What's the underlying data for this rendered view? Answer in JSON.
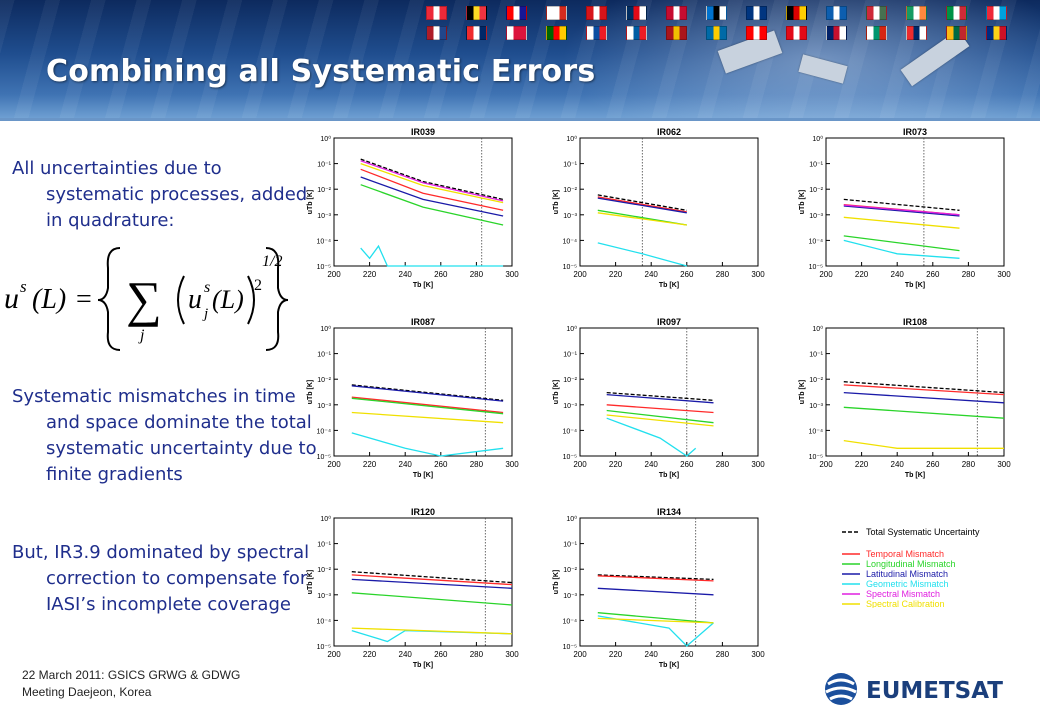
{
  "slide": {
    "title": "Combining all Systematic Errors",
    "bullets": [
      "All uncertainties due to systematic processes, added in quadrature:",
      "Systematic mismatches in time and space dominate the total systematic uncertainty due to finite gradients",
      "But, IR3.9 dominated by spectral correction to compensate for IASI’s incomplete coverage"
    ],
    "footer": {
      "line1": "22 March 2011: GSICS GRWG & GDWG",
      "line2": "Meeting Daejeon, Korea"
    },
    "logo_text": "EUMETSAT",
    "formula": {
      "lhs": "u",
      "lhs_sup": "s",
      "lhs_arg": "(L)",
      "equals": "=",
      "sum": "∑",
      "sum_index": "j",
      "term": "u",
      "term_sup": "s",
      "term_sub": "j",
      "term_arg": "(L)",
      "square": "2",
      "power": "1/2"
    },
    "flag_colors": [
      [
        "#ed2939",
        "#ffffff",
        "#ed2939"
      ],
      [
        "#000000",
        "#fdda24",
        "#ef3340"
      ],
      [
        "#ff0000",
        "#ffffff",
        "#171796"
      ],
      [
        "#ffffff",
        "#ffffff",
        "#d52b1e"
      ],
      [
        "#d7141a",
        "#ffffff",
        "#d7141a"
      ],
      [
        "#002d62",
        "#e30a17",
        "#ffffff"
      ],
      [
        "#c60c30",
        "#ffffff",
        "#c60c30"
      ],
      [
        "#0072ce",
        "#000000",
        "#ffffff"
      ],
      [
        "#003580",
        "#ffffff",
        "#003580"
      ],
      [
        "#000000",
        "#dd0000",
        "#ffce00"
      ],
      [
        "#0d5eaf",
        "#ffffff",
        "#0d5eaf"
      ],
      [
        "#ce2939",
        "#ffffff",
        "#477050"
      ],
      [
        "#169b62",
        "#ffffff",
        "#ff883e"
      ],
      [
        "#009246",
        "#ffffff",
        "#ce2b37"
      ],
      [
        "#ed2939",
        "#ffffff",
        "#00a1de"
      ],
      [
        "#ae1c28",
        "#ffffff",
        "#21468b"
      ],
      [
        "#ef2b2d",
        "#ffffff",
        "#002868"
      ],
      [
        "#ffffff",
        "#dc143c",
        "#dc143c"
      ],
      [
        "#006600",
        "#ff0000",
        "#ffcc00"
      ],
      [
        "#ffffff",
        "#0b4ea2",
        "#ee1c25"
      ],
      [
        "#ffffff",
        "#005da4",
        "#ed1c24"
      ],
      [
        "#aa151b",
        "#f1bf00",
        "#aa151b"
      ],
      [
        "#006aa7",
        "#fecc00",
        "#006aa7"
      ],
      [
        "#ff0000",
        "#ffffff",
        "#ff0000"
      ],
      [
        "#e30a17",
        "#ffffff",
        "#e30a17"
      ],
      [
        "#012169",
        "#c8102e",
        "#ffffff"
      ],
      [
        "#ffffff",
        "#00966e",
        "#d62612"
      ],
      [
        "#ef2b2d",
        "#002868",
        "#ffffff"
      ],
      [
        "#fdb913",
        "#006a44",
        "#c1272d"
      ],
      [
        "#002b7f",
        "#fcd116",
        "#ce1126"
      ]
    ]
  },
  "chart_data": [
    {
      "type": "line",
      "title": "IR039",
      "xlabel": "Tb [K]",
      "ylabel": "uTb [K]",
      "xlim": [
        200,
        300
      ],
      "ylim": [
        1e-05,
        1
      ],
      "yscale": "log",
      "xticks": [
        200,
        220,
        240,
        260,
        280,
        300
      ],
      "yticks": [
        "10⁰",
        "10⁻¹",
        "10⁻²",
        "10⁻³",
        "10⁻⁴",
        "10⁻⁵"
      ],
      "vline": 283,
      "series": [
        {
          "name": "Total Systematic Uncertainty",
          "x": [
            215,
            250,
            295
          ],
          "y": [
            0.15,
            0.02,
            0.004
          ]
        },
        {
          "name": "Temporal Mismatch",
          "x": [
            215,
            250,
            295
          ],
          "y": [
            0.06,
            0.007,
            0.0015
          ]
        },
        {
          "name": "Longitudinal Mismatch",
          "x": [
            215,
            250,
            295
          ],
          "y": [
            0.015,
            0.002,
            0.0004
          ]
        },
        {
          "name": "Latitudinal Mismatch",
          "x": [
            215,
            250,
            295
          ],
          "y": [
            0.03,
            0.004,
            0.0009
          ]
        },
        {
          "name": "Geometric Mismatch",
          "x": [
            215,
            220,
            225,
            230,
            280,
            290,
            295
          ],
          "y": [
            5e-05,
            2e-05,
            6e-05,
            1e-05,
            1e-05,
            1e-05,
            1e-05
          ]
        },
        {
          "name": "Spectral Mismatch",
          "x": [
            215,
            250,
            295
          ],
          "y": [
            0.13,
            0.018,
            0.0035
          ]
        },
        {
          "name": "Spectral Calibration",
          "x": [
            215,
            250,
            295
          ],
          "y": [
            0.1,
            0.014,
            0.003
          ]
        }
      ]
    },
    {
      "type": "line",
      "title": "IR062",
      "xlabel": "Tb [K]",
      "ylabel": "uTb [K]",
      "xlim": [
        200,
        300
      ],
      "ylim": [
        1e-05,
        1
      ],
      "yscale": "log",
      "xticks": [
        200,
        220,
        240,
        260,
        280,
        300
      ],
      "yticks": [
        "10⁰",
        "10⁻¹",
        "10⁻²",
        "10⁻³",
        "10⁻⁴",
        "10⁻⁵"
      ],
      "vline": 235,
      "series": [
        {
          "name": "Total Systematic Uncertainty",
          "x": [
            210,
            260
          ],
          "y": [
            0.006,
            0.0015
          ]
        },
        {
          "name": "Temporal Mismatch",
          "x": [
            210,
            260
          ],
          "y": [
            0.005,
            0.0013
          ]
        },
        {
          "name": "Longitudinal Mismatch",
          "x": [
            210,
            260
          ],
          "y": [
            0.0015,
            0.0004
          ]
        },
        {
          "name": "Latitudinal Mismatch",
          "x": [
            210,
            260
          ],
          "y": [
            0.0045,
            0.0012
          ]
        },
        {
          "name": "Geometric Mismatch",
          "x": [
            210,
            235,
            260
          ],
          "y": [
            8e-05,
            3e-05,
            1e-05
          ]
        },
        {
          "name": "Spectral Calibration",
          "x": [
            210,
            260
          ],
          "y": [
            0.0012,
            0.0004
          ]
        }
      ]
    },
    {
      "type": "line",
      "title": "IR073",
      "xlabel": "Tb [K]",
      "ylabel": "uTb [K]",
      "xlim": [
        200,
        300
      ],
      "ylim": [
        1e-05,
        1
      ],
      "yscale": "log",
      "xticks": [
        200,
        220,
        240,
        260,
        280,
        300
      ],
      "yticks": [
        "10⁰",
        "10⁻¹",
        "10⁻²",
        "10⁻³",
        "10⁻⁴",
        "10⁻⁵"
      ],
      "vline": 255,
      "series": [
        {
          "name": "Total Systematic Uncertainty",
          "x": [
            210,
            275
          ],
          "y": [
            0.004,
            0.0015
          ]
        },
        {
          "name": "Temporal Mismatch",
          "x": [
            210,
            275
          ],
          "y": [
            0.0025,
            0.001
          ]
        },
        {
          "name": "Longitudinal Mismatch",
          "x": [
            210,
            275
          ],
          "y": [
            0.00015,
            4e-05
          ]
        },
        {
          "name": "Latitudinal Mismatch",
          "x": [
            210,
            275
          ],
          "y": [
            0.0022,
            0.0009
          ]
        },
        {
          "name": "Geometric Mismatch",
          "x": [
            210,
            240,
            275
          ],
          "y": [
            0.0001,
            3e-05,
            2e-05
          ]
        },
        {
          "name": "Spectral Mismatch",
          "x": [
            210,
            275
          ],
          "y": [
            0.0024,
            0.001
          ]
        },
        {
          "name": "Spectral Calibration",
          "x": [
            210,
            275
          ],
          "y": [
            0.0008,
            0.0003
          ]
        }
      ]
    },
    {
      "type": "line",
      "title": "IR087",
      "xlabel": "Tb [K]",
      "ylabel": "uTb [K]",
      "xlim": [
        200,
        300
      ],
      "ylim": [
        1e-05,
        1
      ],
      "yscale": "log",
      "xticks": [
        200,
        220,
        240,
        260,
        280,
        300
      ],
      "yticks": [
        "10⁰",
        "10⁻¹",
        "10⁻²",
        "10⁻³",
        "10⁻⁴",
        "10⁻⁵"
      ],
      "vline": 285,
      "series": [
        {
          "name": "Total Systematic Uncertainty",
          "x": [
            210,
            295
          ],
          "y": [
            0.006,
            0.0015
          ]
        },
        {
          "name": "Temporal Mismatch",
          "x": [
            210,
            295
          ],
          "y": [
            0.002,
            0.0005
          ]
        },
        {
          "name": "Longitudinal Mismatch",
          "x": [
            210,
            295
          ],
          "y": [
            0.0018,
            0.00045
          ]
        },
        {
          "name": "Latitudinal Mismatch",
          "x": [
            210,
            295
          ],
          "y": [
            0.0055,
            0.0014
          ]
        },
        {
          "name": "Geometric Mismatch",
          "x": [
            210,
            240,
            260,
            295
          ],
          "y": [
            8e-05,
            2e-05,
            1e-05,
            2e-05
          ]
        },
        {
          "name": "Spectral Calibration",
          "x": [
            210,
            295
          ],
          "y": [
            0.0005,
            0.0002
          ]
        }
      ]
    },
    {
      "type": "line",
      "title": "IR097",
      "xlabel": "Tb [K]",
      "ylabel": "uTb [K]",
      "xlim": [
        200,
        300
      ],
      "ylim": [
        1e-05,
        1
      ],
      "yscale": "log",
      "xticks": [
        200,
        220,
        240,
        260,
        280,
        300
      ],
      "yticks": [
        "10⁰",
        "10⁻¹",
        "10⁻²",
        "10⁻³",
        "10⁻⁴",
        "10⁻⁵"
      ],
      "vline": 260,
      "series": [
        {
          "name": "Total Systematic Uncertainty",
          "x": [
            215,
            275
          ],
          "y": [
            0.003,
            0.0015
          ]
        },
        {
          "name": "Temporal Mismatch",
          "x": [
            215,
            275
          ],
          "y": [
            0.001,
            0.0005
          ]
        },
        {
          "name": "Longitudinal Mismatch",
          "x": [
            215,
            275
          ],
          "y": [
            0.0006,
            0.0002
          ]
        },
        {
          "name": "Latitudinal Mismatch",
          "x": [
            215,
            275
          ],
          "y": [
            0.0025,
            0.0012
          ]
        },
        {
          "name": "Geometric Mismatch",
          "x": [
            215,
            245,
            260,
            265
          ],
          "y": [
            0.0003,
            5e-05,
            1e-05,
            2e-05
          ]
        },
        {
          "name": "Spectral Calibration",
          "x": [
            215,
            275
          ],
          "y": [
            0.0004,
            0.00015
          ]
        }
      ]
    },
    {
      "type": "line",
      "title": "IR108",
      "xlabel": "Tb [K]",
      "ylabel": "uTb [K]",
      "xlim": [
        200,
        300
      ],
      "ylim": [
        1e-05,
        1
      ],
      "yscale": "log",
      "xticks": [
        200,
        220,
        240,
        260,
        280,
        300
      ],
      "yticks": [
        "10⁰",
        "10⁻¹",
        "10⁻²",
        "10⁻³",
        "10⁻⁴",
        "10⁻⁵"
      ],
      "vline": 285,
      "series": [
        {
          "name": "Total Systematic Uncertainty",
          "x": [
            210,
            300
          ],
          "y": [
            0.008,
            0.003
          ]
        },
        {
          "name": "Temporal Mismatch",
          "x": [
            210,
            300
          ],
          "y": [
            0.006,
            0.0025
          ]
        },
        {
          "name": "Longitudinal Mismatch",
          "x": [
            210,
            300
          ],
          "y": [
            0.0008,
            0.0003
          ]
        },
        {
          "name": "Latitudinal Mismatch",
          "x": [
            210,
            300
          ],
          "y": [
            0.003,
            0.0012
          ]
        },
        {
          "name": "Spectral Calibration",
          "x": [
            210,
            240,
            300
          ],
          "y": [
            4e-05,
            2e-05,
            2e-05
          ]
        }
      ]
    },
    {
      "type": "line",
      "title": "IR120",
      "xlabel": "Tb [K]",
      "ylabel": "uTb [K]",
      "xlim": [
        200,
        300
      ],
      "ylim": [
        1e-05,
        1
      ],
      "yscale": "log",
      "xticks": [
        200,
        220,
        240,
        260,
        280,
        300
      ],
      "yticks": [
        "10⁰",
        "10⁻¹",
        "10⁻²",
        "10⁻³",
        "10⁻⁴",
        "10⁻⁵"
      ],
      "vline": 285,
      "series": [
        {
          "name": "Total Systematic Uncertainty",
          "x": [
            210,
            300
          ],
          "y": [
            0.008,
            0.003
          ]
        },
        {
          "name": "Temporal Mismatch",
          "x": [
            210,
            300
          ],
          "y": [
            0.006,
            0.0025
          ]
        },
        {
          "name": "Longitudinal Mismatch",
          "x": [
            210,
            300
          ],
          "y": [
            0.0012,
            0.0004
          ]
        },
        {
          "name": "Latitudinal Mismatch",
          "x": [
            210,
            300
          ],
          "y": [
            0.004,
            0.0018
          ]
        },
        {
          "name": "Geometric Mismatch",
          "x": [
            210,
            230,
            240,
            300
          ],
          "y": [
            4e-05,
            1.5e-05,
            4e-05,
            3e-05
          ]
        },
        {
          "name": "Spectral Calibration",
          "x": [
            210,
            300
          ],
          "y": [
            5e-05,
            3e-05
          ]
        }
      ]
    },
    {
      "type": "line",
      "title": "IR134",
      "xlabel": "Tb [K]",
      "ylabel": "uTb [K]",
      "xlim": [
        200,
        300
      ],
      "ylim": [
        1e-05,
        1
      ],
      "yscale": "log",
      "xticks": [
        200,
        220,
        240,
        260,
        280,
        300
      ],
      "yticks": [
        "10⁰",
        "10⁻¹",
        "10⁻²",
        "10⁻³",
        "10⁻⁴",
        "10⁻⁵"
      ],
      "vline": 265,
      "series": [
        {
          "name": "Total Systematic Uncertainty",
          "x": [
            210,
            275
          ],
          "y": [
            0.006,
            0.004
          ]
        },
        {
          "name": "Temporal Mismatch",
          "x": [
            210,
            275
          ],
          "y": [
            0.0055,
            0.0035
          ]
        },
        {
          "name": "Longitudinal Mismatch",
          "x": [
            210,
            275
          ],
          "y": [
            0.0002,
            8e-05
          ]
        },
        {
          "name": "Latitudinal Mismatch",
          "x": [
            210,
            275
          ],
          "y": [
            0.0018,
            0.001
          ]
        },
        {
          "name": "Geometric Mismatch",
          "x": [
            210,
            250,
            260,
            275
          ],
          "y": [
            0.00015,
            5e-05,
            1e-05,
            8e-05
          ]
        },
        {
          "name": "Spectral Calibration",
          "x": [
            210,
            275
          ],
          "y": [
            0.00012,
            8e-05
          ]
        }
      ]
    }
  ],
  "legend": {
    "entries": [
      {
        "label": "Total Systematic Uncertainty",
        "color": "#000000",
        "dash": true
      },
      {
        "label": "Temporal Mismatch",
        "color": "#ff2a2a",
        "dash": false
      },
      {
        "label": "Longitudinal Mismatch",
        "color": "#2ad42a",
        "dash": false
      },
      {
        "label": "Latitudinal Mismatch",
        "color": "#1a1aa8",
        "dash": false
      },
      {
        "label": "Geometric Mismatch",
        "color": "#22e0ee",
        "dash": false
      },
      {
        "label": "Spectral Mismatch",
        "color": "#e020e0",
        "dash": false
      },
      {
        "label": "Spectral Calibration",
        "color": "#f0e000",
        "dash": false
      }
    ]
  }
}
